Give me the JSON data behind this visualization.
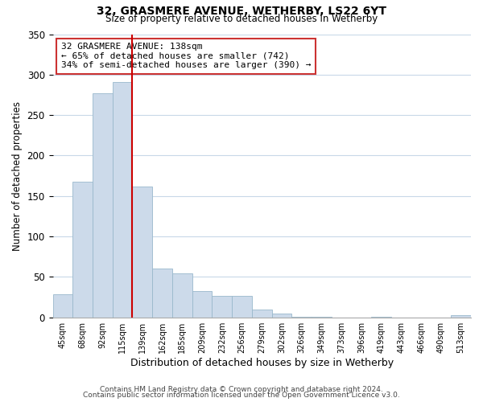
{
  "title": "32, GRASMERE AVENUE, WETHERBY, LS22 6YT",
  "subtitle": "Size of property relative to detached houses in Wetherby",
  "xlabel": "Distribution of detached houses by size in Wetherby",
  "ylabel": "Number of detached properties",
  "bar_labels": [
    "45sqm",
    "68sqm",
    "92sqm",
    "115sqm",
    "139sqm",
    "162sqm",
    "185sqm",
    "209sqm",
    "232sqm",
    "256sqm",
    "279sqm",
    "302sqm",
    "326sqm",
    "349sqm",
    "373sqm",
    "396sqm",
    "419sqm",
    "443sqm",
    "466sqm",
    "490sqm",
    "513sqm"
  ],
  "bar_values": [
    29,
    168,
    277,
    291,
    162,
    60,
    54,
    33,
    27,
    27,
    10,
    5,
    1,
    1,
    0,
    0,
    1,
    0,
    0,
    0,
    3
  ],
  "bar_color": "#ccdaea",
  "bar_edge_color": "#99b8cc",
  "vline_color": "#cc0000",
  "annotation_title": "32 GRASMERE AVENUE: 138sqm",
  "annotation_line1": "← 65% of detached houses are smaller (742)",
  "annotation_line2": "34% of semi-detached houses are larger (390) →",
  "annotation_box_color": "#ffffff",
  "annotation_box_edge": "#cc3333",
  "ylim": [
    0,
    350
  ],
  "yticks": [
    0,
    50,
    100,
    150,
    200,
    250,
    300,
    350
  ],
  "footer1": "Contains HM Land Registry data © Crown copyright and database right 2024.",
  "footer2": "Contains public sector information licensed under the Open Government Licence v3.0.",
  "bg_color": "#ffffff",
  "grid_color": "#c8d8e8"
}
